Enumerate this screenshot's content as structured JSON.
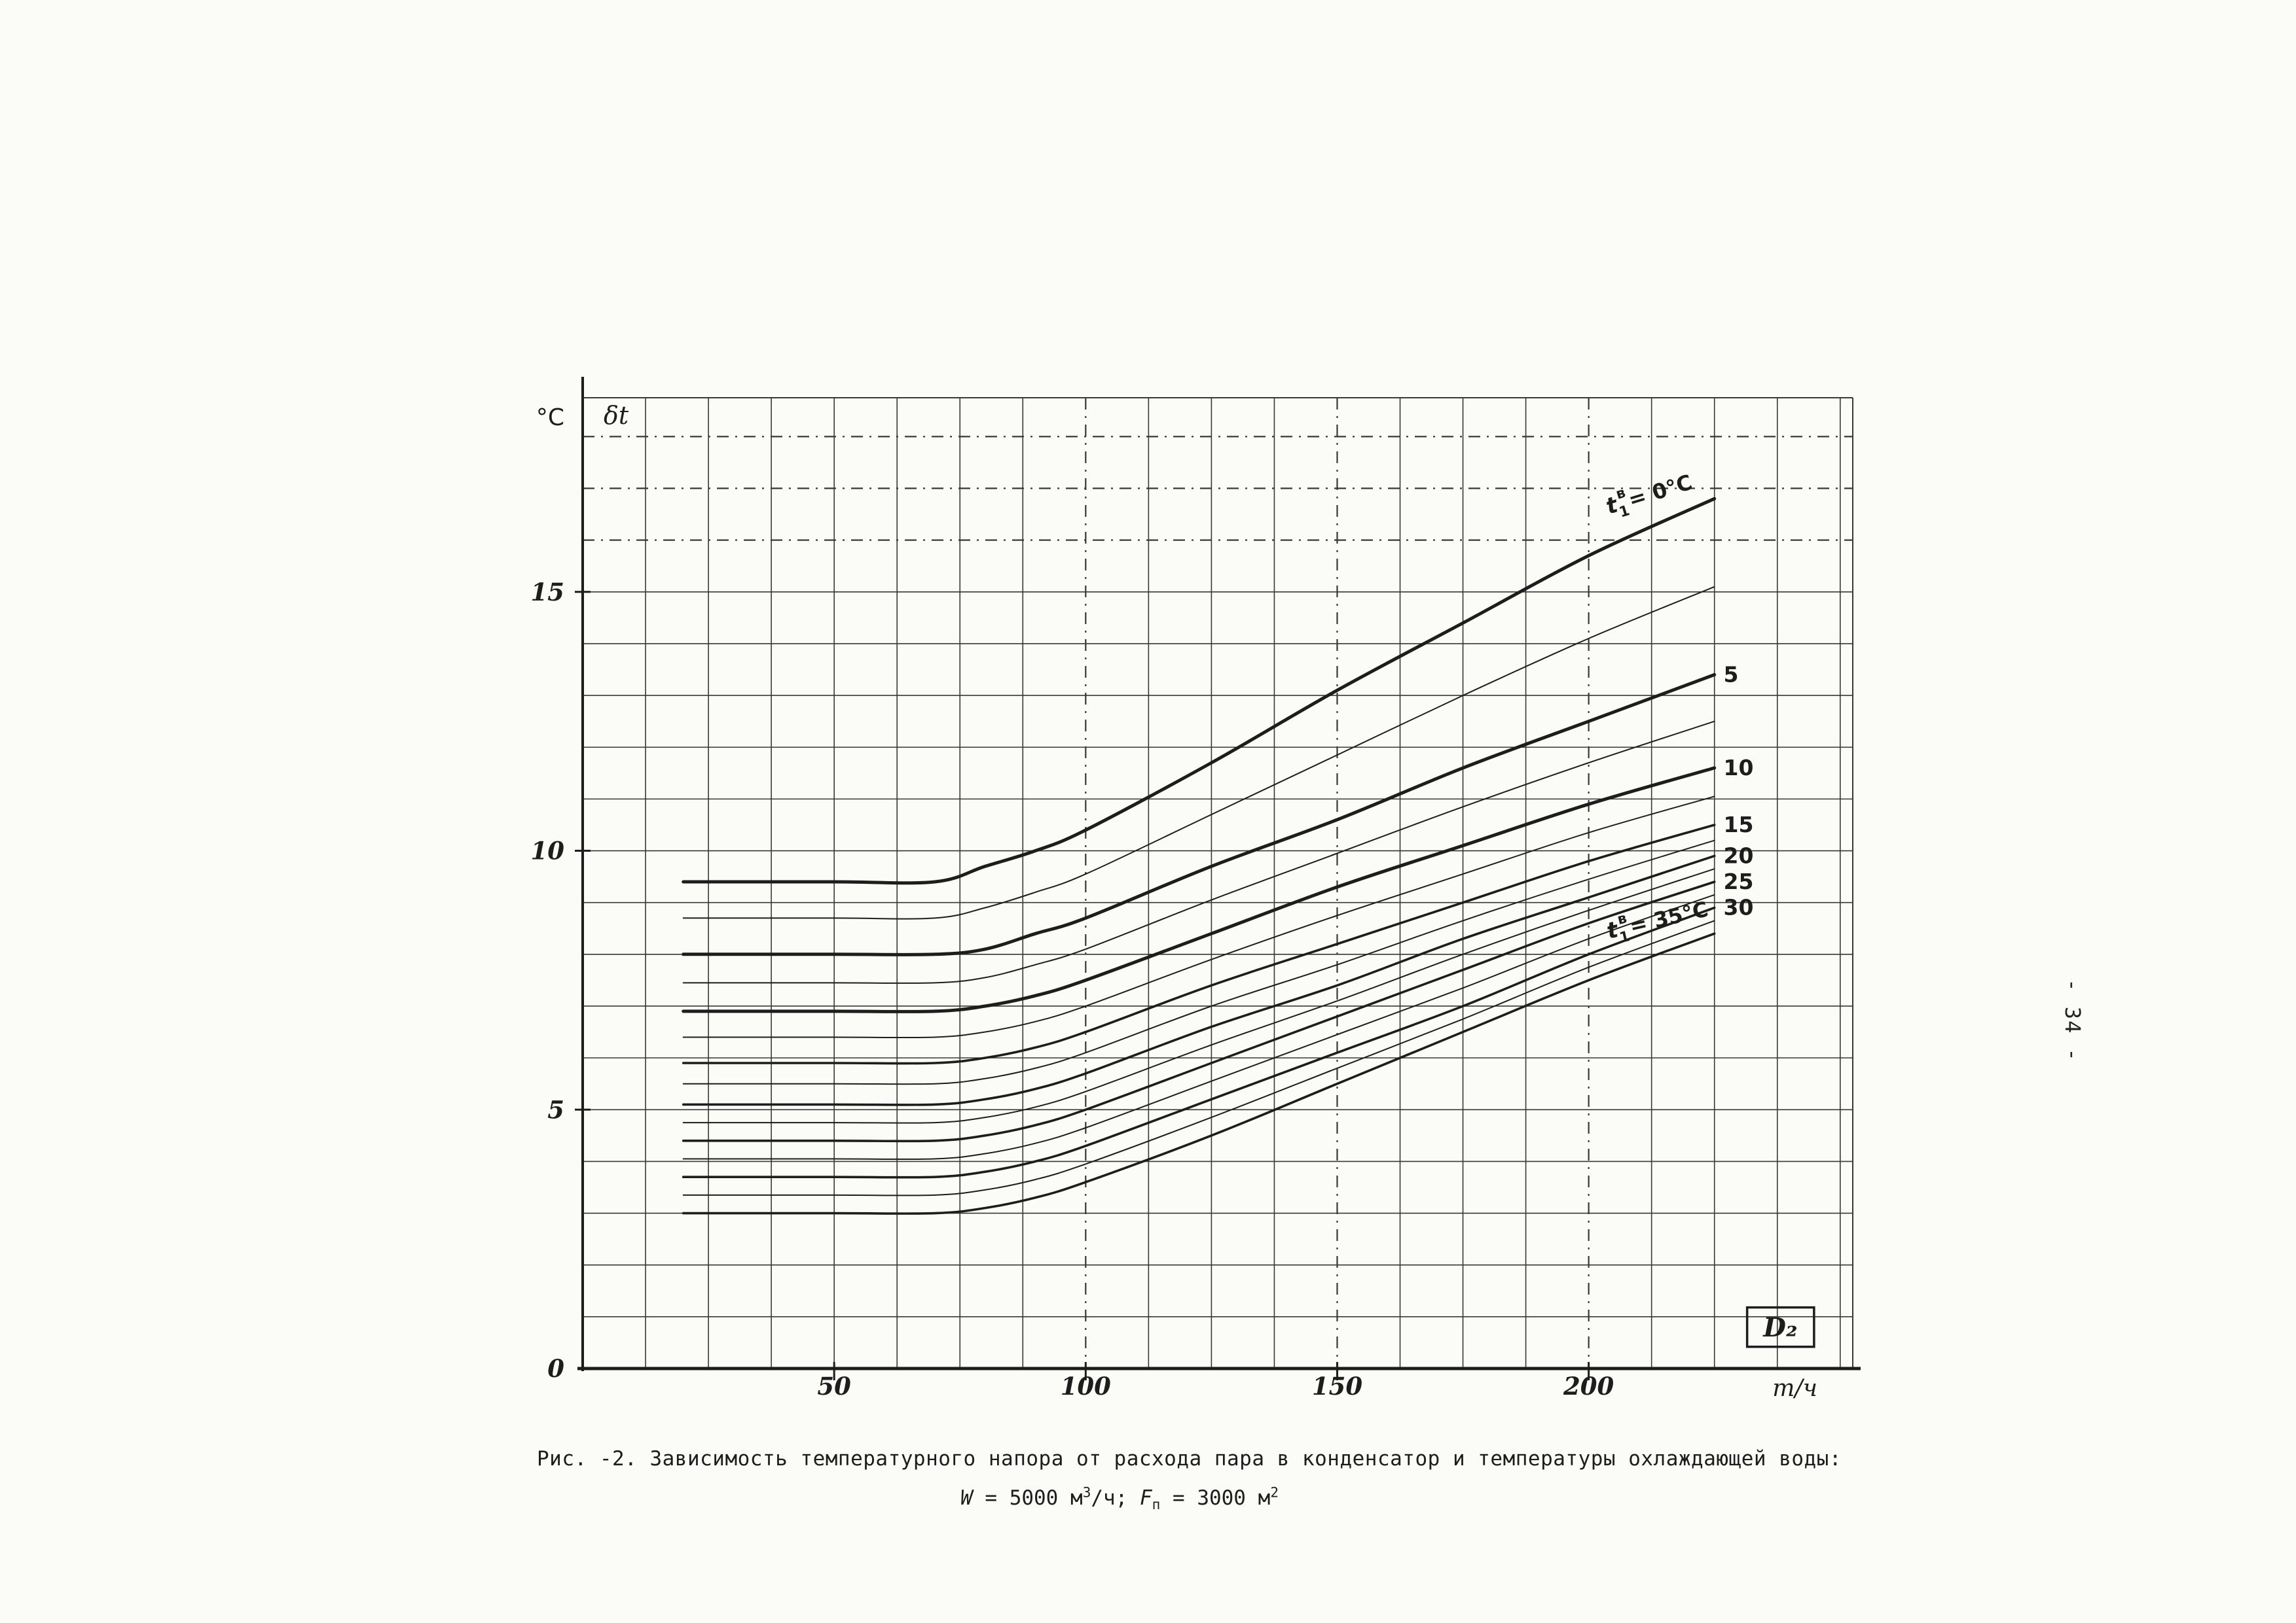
{
  "page": {
    "number": "- 34 -",
    "ink": "#1d1d1d"
  },
  "axis": {
    "y_unit": "°C",
    "y_symbol": "δt",
    "x_unit": "т/ч",
    "x_symbol": "D₂",
    "origin_label": "0"
  },
  "caption": {
    "line1": "Рис. -2. Зависимость температурного напора от расхода пара в конденсатор и температуры охлаждающей воды:",
    "line2": {
      "w": "W",
      "seg1": " = 5000 м",
      "sup1": "3",
      "seg2": "/ч;  ",
      "f": "F",
      "sub1": "п",
      "seg3": " = 3000 м",
      "sup2": "2"
    }
  },
  "chart_data": {
    "type": "line",
    "title": "",
    "xlabel": "D₂, т/ч",
    "ylabel": "δt, °C",
    "xlim": [
      0,
      252.5
    ],
    "ylim": [
      0,
      18.75
    ],
    "x_ticks": [
      50,
      100,
      150,
      200
    ],
    "y_ticks": [
      0,
      5,
      10,
      15
    ],
    "grid": {
      "on": true,
      "x_step": 12.5,
      "y_step": 1,
      "dashed_x": [
        100,
        150,
        200
      ],
      "dashed_y": [
        16,
        17,
        18
      ]
    },
    "x": [
      20,
      50,
      70,
      80,
      90,
      100,
      125,
      150,
      175,
      200,
      225
    ],
    "series": [
      {
        "t1": 0,
        "name": "t1в = 0°C",
        "label_style": "rotated",
        "label": {
          "base": "t",
          "sub": "1",
          "sup": "в",
          "eq": "= 0°C"
        },
        "label_at": {
          "x": 204,
          "y": 16.5,
          "angle": -17
        },
        "width": "thick",
        "values": [
          9.4,
          9.4,
          9.4,
          9.7,
          10.0,
          10.4,
          11.7,
          13.1,
          14.4,
          15.7,
          16.8
        ]
      },
      {
        "t1": 5,
        "name": "5",
        "label_style": "end",
        "width": "thick",
        "values": [
          8.0,
          8.0,
          8.0,
          8.1,
          8.4,
          8.7,
          9.7,
          10.6,
          11.6,
          12.5,
          13.4
        ]
      },
      {
        "t1": 10,
        "name": "10",
        "label_style": "end",
        "width": "thick",
        "values": [
          6.9,
          6.9,
          6.9,
          7.0,
          7.2,
          7.5,
          8.4,
          9.3,
          10.1,
          10.9,
          11.6
        ]
      },
      {
        "t1": 15,
        "name": "15",
        "label_style": "end",
        "width": "normal",
        "values": [
          5.9,
          5.9,
          5.9,
          6.0,
          6.2,
          6.5,
          7.4,
          8.2,
          9.0,
          9.8,
          10.5
        ]
      },
      {
        "t1": 20,
        "name": "20",
        "label_style": "end",
        "width": "normal",
        "values": [
          5.1,
          5.1,
          5.1,
          5.2,
          5.4,
          5.7,
          6.6,
          7.4,
          8.3,
          9.1,
          9.9
        ]
      },
      {
        "t1": 25,
        "name": "25",
        "label_style": "end",
        "width": "normal",
        "values": [
          4.4,
          4.4,
          4.4,
          4.5,
          4.7,
          5.0,
          5.9,
          6.8,
          7.7,
          8.6,
          9.4
        ]
      },
      {
        "t1": 30,
        "name": "30",
        "label_style": "end",
        "width": "normal",
        "values": [
          3.7,
          3.7,
          3.7,
          3.8,
          4.0,
          4.3,
          5.2,
          6.1,
          7.0,
          8.0,
          8.9
        ]
      },
      {
        "t1": 35,
        "name": "t1в = 35°C",
        "label_style": "rotated",
        "label": {
          "base": "t",
          "sub": "1",
          "sup": "в",
          "eq": "= 35°C"
        },
        "label_at": {
          "x": 204,
          "y": 8.3,
          "angle": -13
        },
        "width": "normal",
        "values": [
          3.0,
          3.0,
          3.0,
          3.1,
          3.3,
          3.6,
          4.5,
          5.5,
          6.5,
          7.5,
          8.4
        ]
      }
    ]
  }
}
